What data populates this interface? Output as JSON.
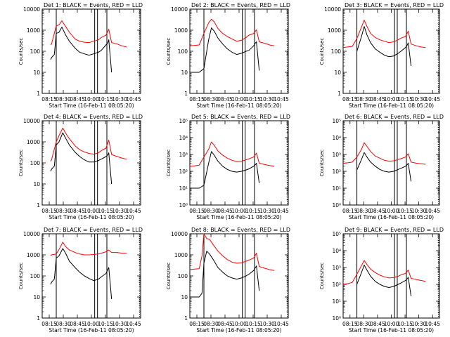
{
  "figure": {
    "xlabel": "Start Time (16-Feb-11 08:05:20)",
    "ylabel": "Counts/sec",
    "xticks": [
      "08:15",
      "08:30",
      "08:45",
      "10:00",
      "10:15",
      "10:30",
      "10:45"
    ],
    "colors": {
      "events": "#000000",
      "lld": "#ff0000",
      "frame": "#000000"
    }
  },
  "chart_data": [
    {
      "type": "line",
      "title": "Det 1: BLACK = Events, RED = LLD",
      "xlabel": "Start Time (16-Feb-11 08:05:20)",
      "ylabel": "Counts/sec",
      "y_scale": "log",
      "ylim": [
        1,
        10000
      ],
      "ytick_style": "decimal",
      "x_minutes": [
        0,
        105
      ],
      "markers": [
        15,
        56,
        59,
        69
      ],
      "series": [
        {
          "color": "#ff0000",
          "role": "LLD",
          "x": [
            9,
            10,
            15,
            18,
            21,
            25,
            29,
            35,
            40,
            45,
            50,
            55,
            60,
            63,
            68,
            71,
            74,
            80,
            85,
            90
          ],
          "y": [
            200,
            220,
            1600,
            1800,
            2800,
            1500,
            800,
            380,
            300,
            270,
            260,
            300,
            350,
            450,
            580,
            1100,
            260,
            220,
            180,
            160
          ]
        },
        {
          "color": "#000000",
          "role": "Events",
          "x": [
            9,
            10,
            13,
            15,
            18,
            21,
            25,
            29,
            35,
            40,
            45,
            50,
            55,
            60,
            63,
            68,
            70,
            71,
            74
          ],
          "y": [
            40,
            50,
            70,
            700,
            800,
            1400,
            600,
            300,
            140,
            90,
            75,
            65,
            75,
            90,
            110,
            200,
            250,
            350,
            10
          ]
        }
      ]
    },
    {
      "type": "line",
      "title": "Det 2: BLACK = Events, RED = LLD",
      "xlabel": "Start Time (16-Feb-11 08:05:20)",
      "ylabel": "Counts/sec",
      "y_scale": "log",
      "ylim": [
        1,
        10000
      ],
      "ytick_style": "decimal",
      "x_minutes": [
        0,
        105
      ],
      "markers": [
        15,
        56,
        59,
        69
      ],
      "series": [
        {
          "color": "#ff0000",
          "role": "LLD",
          "x": [
            0,
            5,
            10,
            15,
            20,
            23,
            26,
            30,
            35,
            40,
            45,
            50,
            55,
            60,
            63,
            68,
            71,
            74,
            80,
            85,
            90
          ],
          "y": [
            180,
            190,
            200,
            700,
            2200,
            3300,
            2500,
            1200,
            700,
            500,
            380,
            300,
            330,
            450,
            580,
            700,
            1050,
            280,
            240,
            200,
            180
          ]
        },
        {
          "color": "#000000",
          "role": "Events",
          "x": [
            0,
            5,
            10,
            15,
            20,
            23,
            26,
            30,
            35,
            40,
            45,
            50,
            55,
            60,
            63,
            68,
            70,
            71,
            74
          ],
          "y": [
            10,
            10,
            10,
            15,
            350,
            1300,
            900,
            420,
            220,
            130,
            90,
            70,
            80,
            100,
            110,
            180,
            250,
            280,
            12
          ]
        }
      ]
    },
    {
      "type": "line",
      "title": "Det 3: BLACK = Events, RED = LLD",
      "xlabel": "Start Time (16-Feb-11 08:05:20)",
      "ylabel": "Counts/sec",
      "y_scale": "log",
      "ylim": [
        1,
        10000
      ],
      "ytick_style": "decimal",
      "x_minutes": [
        0,
        105
      ],
      "markers": [
        15,
        56,
        59,
        69
      ],
      "series": [
        {
          "color": "#ff0000",
          "role": "LLD",
          "x": [
            0,
            5,
            10,
            15,
            20,
            23,
            26,
            30,
            35,
            40,
            45,
            50,
            55,
            60,
            63,
            68,
            71,
            74,
            80,
            85,
            90
          ],
          "y": [
            150,
            160,
            170,
            400,
            1400,
            3000,
            1500,
            700,
            450,
            350,
            300,
            260,
            280,
            350,
            420,
            500,
            900,
            220,
            180,
            160,
            150
          ]
        },
        {
          "color": "#000000",
          "role": "Events",
          "x": [
            15,
            20,
            23,
            26,
            30,
            35,
            40,
            45,
            50,
            55,
            60,
            63,
            68,
            70,
            71,
            74
          ],
          "y": [
            100,
            500,
            1500,
            600,
            250,
            130,
            90,
            65,
            55,
            60,
            80,
            100,
            150,
            200,
            250,
            20
          ]
        }
      ]
    },
    {
      "type": "line",
      "title": "Det 4: BLACK = Events, RED = LLD",
      "xlabel": "Start Time (16-Feb-11 08:05:20)",
      "ylabel": "Counts/sec",
      "y_scale": "log",
      "ylim": [
        1,
        10000
      ],
      "ytick_style": "decimal",
      "x_minutes": [
        0,
        105
      ],
      "markers": [
        15,
        56,
        59,
        69
      ],
      "series": [
        {
          "color": "#ff0000",
          "role": "LLD",
          "x": [
            9,
            10,
            15,
            18,
            22,
            25,
            29,
            35,
            40,
            45,
            50,
            55,
            60,
            63,
            68,
            71,
            74,
            80,
            85,
            90
          ],
          "y": [
            120,
            140,
            1000,
            2000,
            4500,
            2600,
            1400,
            650,
            420,
            330,
            280,
            260,
            300,
            380,
            500,
            1200,
            250,
            200,
            170,
            150
          ]
        },
        {
          "color": "#000000",
          "role": "Events",
          "x": [
            9,
            10,
            13,
            15,
            18,
            22,
            25,
            29,
            35,
            40,
            45,
            50,
            55,
            60,
            63,
            68,
            70,
            71,
            74
          ],
          "y": [
            40,
            50,
            70,
            700,
            1000,
            2700,
            1500,
            700,
            320,
            200,
            140,
            110,
            110,
            130,
            150,
            200,
            240,
            300,
            10
          ]
        }
      ]
    },
    {
      "type": "line",
      "title": "Det 5: BLACK = Events, RED = LLD",
      "xlabel": "Start Time (16-Feb-11 08:05:20)",
      "ylabel": "Counts/sec",
      "y_scale": "log",
      "ylim": [
        1,
        100000
      ],
      "ytick_style": "power",
      "x_minutes": [
        0,
        105
      ],
      "markers": [
        15,
        56,
        59,
        69
      ],
      "series": [
        {
          "color": "#ff0000",
          "role": "LLD",
          "x": [
            0,
            5,
            10,
            15,
            20,
            23,
            26,
            30,
            35,
            40,
            45,
            50,
            55,
            60,
            63,
            68,
            71,
            74,
            80,
            85,
            90
          ],
          "y": [
            200,
            210,
            230,
            700,
            2000,
            5500,
            3500,
            1600,
            900,
            600,
            450,
            380,
            400,
            480,
            550,
            700,
            1200,
            300,
            250,
            220,
            200
          ]
        },
        {
          "color": "#000000",
          "role": "Events",
          "x": [
            0,
            5,
            10,
            15,
            20,
            23,
            26,
            30,
            35,
            40,
            45,
            50,
            55,
            60,
            63,
            68,
            70,
            71,
            74
          ],
          "y": [
            10,
            10,
            10,
            15,
            300,
            1500,
            900,
            400,
            200,
            130,
            100,
            90,
            100,
            120,
            140,
            200,
            250,
            300,
            20
          ]
        }
      ]
    },
    {
      "type": "line",
      "title": "Det 6: BLACK = Events, RED = LLD",
      "xlabel": "Start Time (16-Feb-11 08:05:20)",
      "ylabel": "Counts/sec",
      "y_scale": "log",
      "ylim": [
        1,
        100000
      ],
      "ytick_style": "power",
      "x_minutes": [
        0,
        105
      ],
      "markers": [
        15,
        56,
        59,
        69
      ],
      "series": [
        {
          "color": "#ff0000",
          "role": "LLD",
          "x": [
            0,
            5,
            10,
            15,
            20,
            23,
            26,
            30,
            35,
            40,
            45,
            50,
            55,
            60,
            63,
            68,
            71,
            74,
            80,
            85,
            90
          ],
          "y": [
            300,
            320,
            350,
            700,
            2000,
            5000,
            3000,
            1500,
            800,
            600,
            450,
            400,
            420,
            500,
            560,
            700,
            1100,
            350,
            300,
            280,
            260
          ]
        },
        {
          "color": "#000000",
          "role": "Events",
          "x": [
            15,
            20,
            23,
            26,
            30,
            35,
            40,
            45,
            50,
            55,
            60,
            63,
            68,
            70,
            71,
            74
          ],
          "y": [
            120,
            500,
            1300,
            700,
            350,
            200,
            130,
            100,
            90,
            100,
            130,
            150,
            200,
            250,
            300,
            25
          ]
        }
      ]
    },
    {
      "type": "line",
      "title": "Det 7: BLACK = Events, RED = LLD",
      "xlabel": "Start Time (16-Feb-11 08:05:20)",
      "ylabel": "Counts/sec",
      "y_scale": "log",
      "ylim": [
        1,
        10000
      ],
      "ytick_style": "decimal",
      "x_minutes": [
        0,
        105
      ],
      "markers": [
        15,
        56,
        59,
        69
      ],
      "series": [
        {
          "color": "#ff0000",
          "role": "LLD",
          "x": [
            9,
            10,
            15,
            18,
            22,
            25,
            29,
            35,
            40,
            45,
            50,
            55,
            60,
            63,
            68,
            71,
            74,
            80,
            85,
            90
          ],
          "y": [
            900,
            1000,
            1100,
            1800,
            4000,
            2500,
            1700,
            1300,
            1100,
            1000,
            1000,
            1050,
            1100,
            1200,
            1400,
            1700,
            1300,
            1300,
            1200,
            1200
          ]
        },
        {
          "color": "#000000",
          "role": "Events",
          "x": [
            9,
            10,
            13,
            15,
            18,
            22,
            25,
            29,
            35,
            40,
            45,
            50,
            55,
            60,
            63,
            68,
            70,
            71,
            74
          ],
          "y": [
            40,
            50,
            70,
            700,
            900,
            2000,
            1200,
            500,
            250,
            150,
            100,
            75,
            60,
            70,
            90,
            130,
            200,
            250,
            8
          ]
        }
      ]
    },
    {
      "type": "line",
      "title": "Det 8: BLACK = Events, RED = LLD",
      "xlabel": "Start Time (16-Feb-11 08:05:20)",
      "ylabel": "Counts/sec",
      "y_scale": "log",
      "ylim": [
        1,
        10000
      ],
      "ytick_style": "decimal",
      "x_minutes": [
        0,
        105
      ],
      "markers": [
        15,
        56,
        59,
        69
      ],
      "series": [
        {
          "color": "#ff0000",
          "role": "LLD",
          "x": [
            0,
            5,
            10,
            13,
            15,
            18,
            21,
            25,
            30,
            35,
            40,
            45,
            50,
            55,
            60,
            63,
            68,
            71,
            74,
            80,
            85,
            90
          ],
          "y": [
            200,
            210,
            220,
            900,
            10000,
            6000,
            5500,
            3000,
            1500,
            900,
            600,
            450,
            400,
            420,
            500,
            560,
            700,
            1200,
            280,
            230,
            200,
            180
          ]
        },
        {
          "color": "#000000",
          "role": "Events",
          "x": [
            0,
            5,
            10,
            13,
            15,
            18,
            21,
            25,
            30,
            35,
            40,
            45,
            50,
            55,
            60,
            63,
            68,
            70,
            71,
            74
          ],
          "y": [
            10,
            10,
            10,
            15,
            400,
            1500,
            1100,
            600,
            250,
            150,
            100,
            80,
            70,
            80,
            100,
            120,
            180,
            250,
            300,
            20
          ]
        }
      ]
    },
    {
      "type": "line",
      "title": "Det 9: BLACK = Events, RED = LLD",
      "xlabel": "Start Time (16-Feb-11 08:05:20)",
      "ylabel": "Counts/sec",
      "y_scale": "log",
      "ylim": [
        1,
        100000
      ],
      "ytick_style": "power",
      "x_minutes": [
        0,
        105
      ],
      "markers": [
        15,
        56,
        59,
        69
      ],
      "series": [
        {
          "color": "#ff0000",
          "role": "LLD",
          "x": [
            0,
            5,
            10,
            15,
            20,
            23,
            26,
            30,
            35,
            40,
            45,
            50,
            55,
            60,
            63,
            68,
            71,
            74,
            80,
            85,
            90
          ],
          "y": [
            100,
            110,
            130,
            400,
            1300,
            2600,
            1500,
            800,
            500,
            350,
            280,
            240,
            250,
            300,
            360,
            450,
            700,
            230,
            190,
            170,
            150
          ]
        },
        {
          "color": "#000000",
          "role": "Events",
          "x": [
            15,
            20,
            23,
            26,
            30,
            35,
            40,
            45,
            50,
            55,
            60,
            63,
            68,
            70,
            71,
            74
          ],
          "y": [
            100,
            500,
            1400,
            700,
            300,
            150,
            100,
            75,
            65,
            75,
            100,
            120,
            170,
            220,
            260,
            20
          ]
        }
      ]
    }
  ]
}
